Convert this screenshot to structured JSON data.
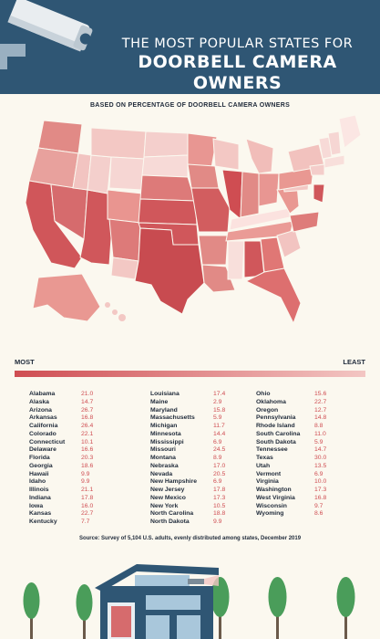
{
  "header": {
    "title_line1": "THE MOST POPULAR STATES FOR",
    "title_line2": "DOORBELL CAMERA",
    "title_line3": "OWNERS"
  },
  "subtitle": "BASED ON PERCENTAGE OF DOORBELL CAMERA OWNERS",
  "legend": {
    "most": "MOST",
    "least": "LEAST",
    "color_most": "#cf4d52",
    "color_least": "#f3c6c3"
  },
  "columns": [
    [
      {
        "state": "Alabama",
        "value": "21.0"
      },
      {
        "state": "Alaska",
        "value": "14.7"
      },
      {
        "state": "Arizona",
        "value": "26.7"
      },
      {
        "state": "Arkansas",
        "value": "16.8"
      },
      {
        "state": "California",
        "value": "26.4"
      },
      {
        "state": "Colorado",
        "value": "22.1"
      },
      {
        "state": "Connecticut",
        "value": "10.1"
      },
      {
        "state": "Delaware",
        "value": "16.6"
      },
      {
        "state": "Florida",
        "value": "20.3"
      },
      {
        "state": "Georgia",
        "value": "18.6"
      },
      {
        "state": "Hawaii",
        "value": "9.9"
      },
      {
        "state": "Idaho",
        "value": "9.9"
      },
      {
        "state": "Illinois",
        "value": "21.1"
      },
      {
        "state": "Indiana",
        "value": "17.8"
      },
      {
        "state": "Iowa",
        "value": "16.0"
      },
      {
        "state": "Kansas",
        "value": "22.7"
      },
      {
        "state": "Kentucky",
        "value": "7.7"
      }
    ],
    [
      {
        "state": "Louisiana",
        "value": "17.4"
      },
      {
        "state": "Maine",
        "value": "2.9"
      },
      {
        "state": "Maryland",
        "value": "15.8"
      },
      {
        "state": "Massachusetts",
        "value": "5.9"
      },
      {
        "state": "Michigan",
        "value": "11.7"
      },
      {
        "state": "Minnesota",
        "value": "14.4"
      },
      {
        "state": "Mississippi",
        "value": "6.9"
      },
      {
        "state": "Missouri",
        "value": "24.5"
      },
      {
        "state": "Montana",
        "value": "8.9"
      },
      {
        "state": "Nebraska",
        "value": "17.0"
      },
      {
        "state": "Nevada",
        "value": "20.5"
      },
      {
        "state": "New Hampshire",
        "value": "6.9"
      },
      {
        "state": "New Jersey",
        "value": "17.8"
      },
      {
        "state": "New Mexico",
        "value": "17.3"
      },
      {
        "state": "New York",
        "value": "10.5"
      },
      {
        "state": "North Carolina",
        "value": "18.8"
      },
      {
        "state": "North Dakota",
        "value": "9.9"
      }
    ],
    [
      {
        "state": "Ohio",
        "value": "15.6"
      },
      {
        "state": "Oklahoma",
        "value": "22.7"
      },
      {
        "state": "Oregon",
        "value": "12.7"
      },
      {
        "state": "Pennsylvania",
        "value": "14.8"
      },
      {
        "state": "Rhode Island",
        "value": "8.8"
      },
      {
        "state": "South Carolina",
        "value": "11.0"
      },
      {
        "state": "South Dakota",
        "value": "5.9"
      },
      {
        "state": "Tennessee",
        "value": "14.7"
      },
      {
        "state": "Texas",
        "value": "30.0"
      },
      {
        "state": "Utah",
        "value": "13.5"
      },
      {
        "state": "Vermont",
        "value": "6.9"
      },
      {
        "state": "Virginia",
        "value": "10.0"
      },
      {
        "state": "Washington",
        "value": "17.3"
      },
      {
        "state": "West Virginia",
        "value": "16.8"
      },
      {
        "state": "Wisconsin",
        "value": "9.7"
      },
      {
        "state": "Wyoming",
        "value": "8.6"
      }
    ]
  ],
  "source": "Source: Survey of 5,104 U.S. adults, evenly distributed among states, December 2019"
}
